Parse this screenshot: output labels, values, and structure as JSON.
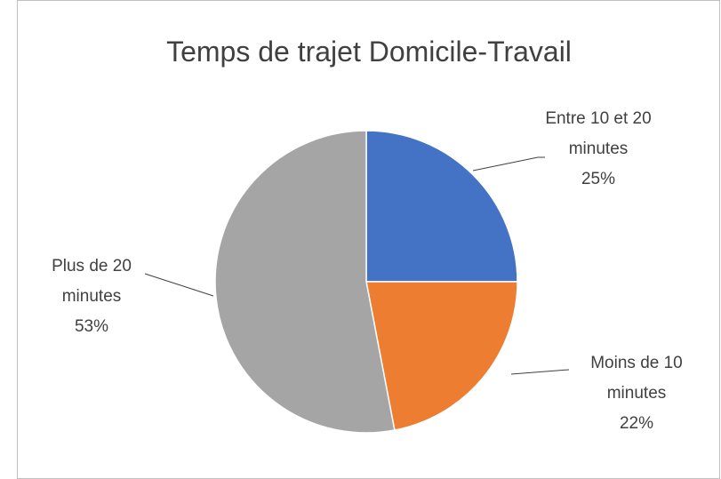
{
  "chart_data": {
    "type": "pie",
    "title": "Temps de trajet Domicile-Travail",
    "categories": [
      "Entre 10 et 20 minutes",
      "Moins de 10 minutes",
      "Plus de 20 minutes"
    ],
    "values": [
      25,
      22,
      53
    ],
    "value_labels": [
      "25%",
      "22%",
      "53%"
    ],
    "colors": [
      "#4472c4",
      "#ed7d31",
      "#a5a5a5"
    ]
  }
}
